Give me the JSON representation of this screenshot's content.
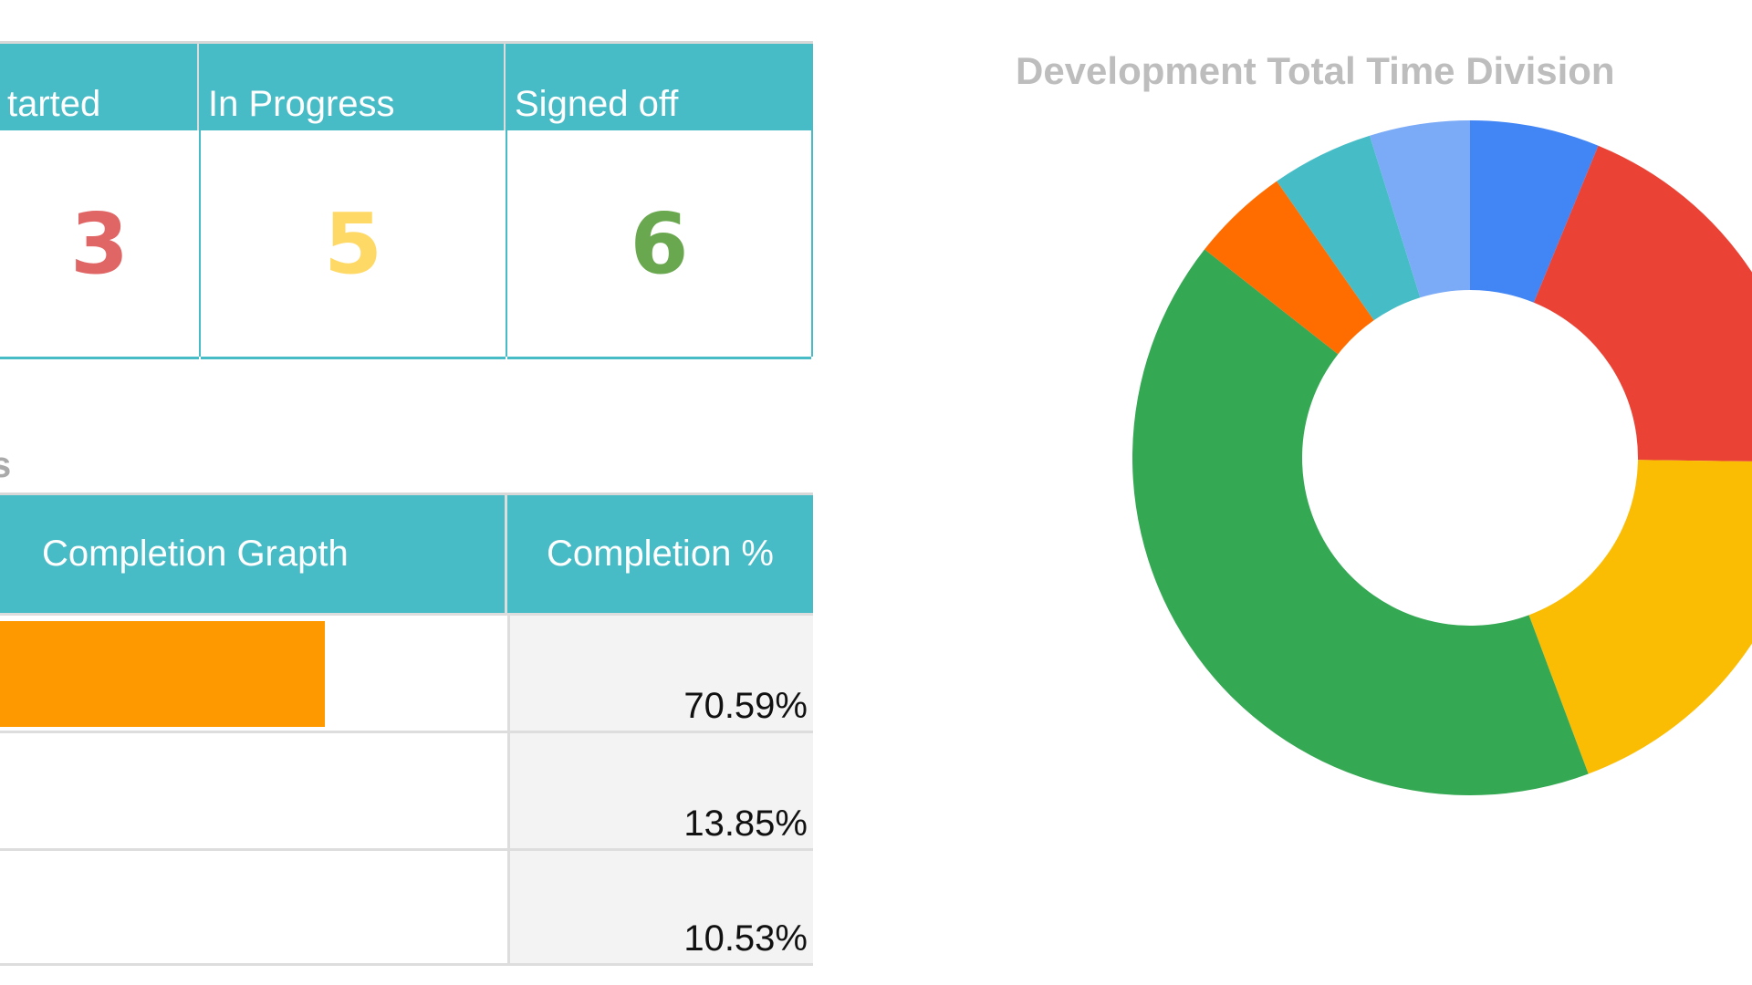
{
  "status_table": {
    "columns": [
      {
        "label": "tarted",
        "value": "3",
        "color": "#e06666"
      },
      {
        "label": "In Progress",
        "value": "5",
        "color": "#ffd966"
      },
      {
        "label": "Signed off",
        "value": "6",
        "color": "#6aa84f"
      }
    ]
  },
  "section_fragment": "s",
  "progress_table": {
    "headers": [
      "Completion Grapth",
      "Completion %"
    ],
    "rows": [
      {
        "percent_text": "70.59%",
        "bar_visible_fraction": 0.4,
        "bar_color": "#ff9900"
      },
      {
        "percent_text": "13.85%",
        "bar_visible_fraction": 0
      },
      {
        "percent_text": "10.53%",
        "bar_visible_fraction": 0
      }
    ]
  },
  "chart_data": {
    "type": "pie",
    "donut": true,
    "title": "Development Total Time Division",
    "legend": "none",
    "slices": [
      {
        "value": 6.2,
        "color": "#4285f4"
      },
      {
        "value": 19.0,
        "color": "#ea4335"
      },
      {
        "value": 19.1,
        "color": "#fbbc04"
      },
      {
        "value": 41.3,
        "color": "#34a853"
      },
      {
        "value": 4.7,
        "color": "#ff6d01"
      },
      {
        "value": 4.9,
        "color": "#46bdc6"
      },
      {
        "value": 4.8,
        "color": "#7baaf7"
      }
    ]
  }
}
